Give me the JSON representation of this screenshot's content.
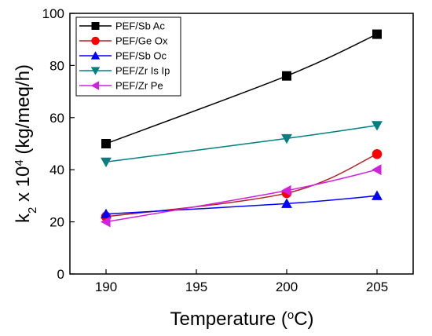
{
  "chart_data": {
    "type": "scatter",
    "xlabel": {
      "main": "Temperature (",
      "sup": "o",
      "tail": "C)"
    },
    "ylabel": {
      "pre": "k",
      "sub": "2",
      "mid": " x 10",
      "sup": "4",
      "tail": " (kg/meq/h)"
    },
    "xlim": [
      188,
      207
    ],
    "ylim": [
      0,
      100
    ],
    "xticks": [
      190,
      195,
      200,
      205
    ],
    "yticks": [
      0,
      20,
      40,
      60,
      80,
      100
    ],
    "grid": false,
    "legend_position": "top-left",
    "series": [
      {
        "name": "PEF/Sb Ac",
        "marker": "square",
        "color": "#000000",
        "x": [
          190,
          200,
          205
        ],
        "y": [
          50,
          76,
          92
        ]
      },
      {
        "name": "PEF/Ge Ox",
        "marker": "circle",
        "color": "#ff0000",
        "line_color": "#b22222",
        "x": [
          190,
          200,
          205
        ],
        "y": [
          22,
          31,
          46
        ]
      },
      {
        "name": "PEF/Sb Oc",
        "marker": "triangle-up",
        "color": "#0000ff",
        "x": [
          190,
          200,
          205
        ],
        "y": [
          23,
          27,
          30
        ]
      },
      {
        "name": "PEF/Zr Is Ip",
        "marker": "triangle-down",
        "color": "#008080",
        "x": [
          190,
          200,
          205
        ],
        "y": [
          43,
          52,
          57
        ]
      },
      {
        "name": "PEF/Zr Pe",
        "marker": "triangle-left",
        "color": "#d020e0",
        "x": [
          190,
          200,
          205
        ],
        "y": [
          20,
          32,
          40
        ]
      }
    ]
  }
}
